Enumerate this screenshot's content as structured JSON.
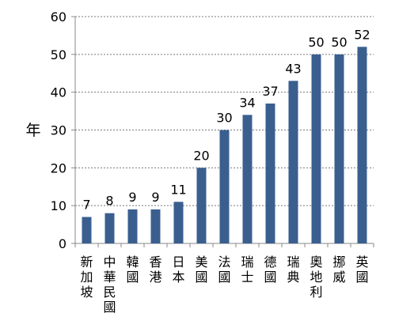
{
  "chart_data": {
    "type": "bar",
    "title": "",
    "xlabel": "",
    "ylabel": "年",
    "ylim": [
      0,
      60
    ],
    "yticks": [
      "0",
      "10",
      "20",
      "30",
      "40",
      "50",
      "60"
    ],
    "grid": true,
    "bar_color": "#3a5f8f",
    "categories": [
      "新加坡",
      "中華民國",
      "韓國",
      "香港",
      "日本",
      "美國",
      "法國",
      "瑞士",
      "德國",
      "瑞典",
      "奧地利",
      "挪威",
      "英國"
    ],
    "values": [
      7,
      8,
      9,
      9,
      11,
      20,
      30,
      34,
      37,
      43,
      50,
      50,
      52
    ],
    "data_labels": [
      "7",
      "8",
      "9",
      "9",
      "11",
      "20",
      "30",
      "34",
      "37",
      "43",
      "50",
      "50",
      "52"
    ]
  }
}
